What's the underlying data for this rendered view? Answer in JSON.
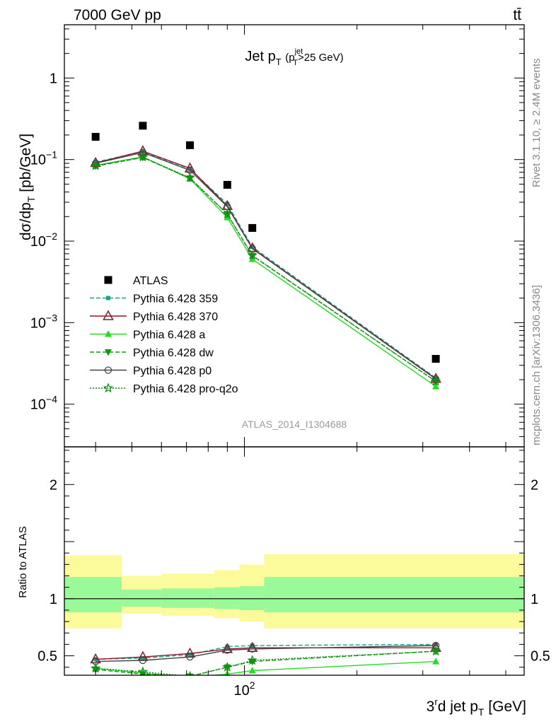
{
  "header": {
    "left_label": "7000 GeV pp",
    "right_label": "tt̄"
  },
  "side_labels": {
    "rivet": "Rivet 3.1.10, ≥ 2.4M events",
    "mcplots": "mcplots.cern.ch [arXiv:1306.3436]"
  },
  "watermark": "ATLAS_2014_I1304688",
  "chart_data": [
    {
      "type": "scatter",
      "panel": "main",
      "title": {
        "main": "Jet p",
        "sub": "T",
        "cond_open": "(p",
        "cond_sup": "jet",
        "cond_sub": "T",
        "cond_close": ">25 GeV)"
      },
      "ylabel": {
        "main": "dσ/dp",
        "sub": "T",
        "unit": " [pb/GeV]"
      },
      "yscale": "log",
      "xscale": "log",
      "xlim": [
        33,
        560
      ],
      "ylim": [
        3e-05,
        4.5
      ],
      "y_ticks": [
        {
          "value": 1,
          "label": "1"
        },
        {
          "value": 0.1,
          "label": "10",
          "exp": "−1"
        },
        {
          "value": 0.01,
          "label": "10",
          "exp": "−2"
        },
        {
          "value": 0.001,
          "label": "10",
          "exp": "−3"
        },
        {
          "value": 0.0001,
          "label": "10",
          "exp": "−4"
        }
      ],
      "legend_placement": "lower-left",
      "x": [
        40,
        53.5,
        71.5,
        90,
        105,
        325
      ],
      "data": {
        "name": "ATLAS",
        "color": "#000000",
        "values": [
          0.19,
          0.26,
          0.15,
          0.049,
          0.0145,
          0.00036
        ],
        "bins": [
          [
            33,
            47
          ],
          [
            47,
            60
          ],
          [
            60,
            83
          ],
          [
            83,
            97
          ],
          [
            97,
            113
          ],
          [
            113,
            560
          ]
        ]
      },
      "series": [
        {
          "name": "Pythia 6.428 359",
          "color": "#17a589",
          "dash": "6,3",
          "marker": "square-small",
          "values": [
            0.093,
            0.125,
            0.077,
            0.0285,
            0.0085,
            0.00021
          ]
        },
        {
          "name": "Pythia 6.428 370",
          "color": "#8b1a2b",
          "dash": "",
          "marker": "triangle-open",
          "values": [
            0.091,
            0.127,
            0.078,
            0.027,
            0.0082,
            0.000205
          ]
        },
        {
          "name": "Pythia 6.428 a",
          "color": "#22dd22",
          "dash": "",
          "marker": "triangle-filled",
          "values": [
            0.085,
            0.108,
            0.058,
            0.0195,
            0.006,
            0.000165
          ]
        },
        {
          "name": "Pythia 6.428 dw",
          "color": "#119911",
          "dash": "6,3",
          "marker": "triangle-down",
          "values": [
            0.083,
            0.106,
            0.059,
            0.0215,
            0.0066,
            0.00019
          ]
        },
        {
          "name": "Pythia 6.428 p0",
          "color": "#444444",
          "dash": "",
          "marker": "circle-open",
          "values": [
            0.09,
            0.122,
            0.074,
            0.0265,
            0.0081,
            0.000203
          ]
        },
        {
          "name": "Pythia 6.428 pro-q2o",
          "color": "#118811",
          "dash": "2,2",
          "marker": "star",
          "values": [
            0.084,
            0.107,
            0.06,
            0.0215,
            0.0067,
            0.00019
          ]
        }
      ]
    },
    {
      "type": "line",
      "panel": "ratio",
      "ylabel": "Ratio to ATLAS",
      "xlabel": {
        "pre": "3",
        "sup": "r",
        "post": "d jet p",
        "sub": "T",
        "unit": " [GeV]"
      },
      "xscale": "log",
      "xlim": [
        33,
        560
      ],
      "ylim": [
        0.33,
        2.33
      ],
      "x_ticks": [
        {
          "value": 100,
          "label": "10",
          "exp": "2"
        }
      ],
      "y_ticks": [
        {
          "value": 0.5,
          "label": "0.5"
        },
        {
          "value": 1,
          "label": "1"
        },
        {
          "value": 2,
          "label": "2"
        }
      ],
      "bands": {
        "bins": [
          [
            33,
            47
          ],
          [
            47,
            60
          ],
          [
            60,
            83
          ],
          [
            83,
            97
          ],
          [
            97,
            113
          ],
          [
            113,
            560
          ]
        ],
        "stat": [
          [
            0.88,
            1.19
          ],
          [
            0.93,
            1.08
          ],
          [
            0.92,
            1.09
          ],
          [
            0.91,
            1.1
          ],
          [
            0.9,
            1.11
          ],
          [
            0.88,
            1.19
          ]
        ],
        "total": [
          [
            0.74,
            1.38
          ],
          [
            0.87,
            1.2
          ],
          [
            0.85,
            1.22
          ],
          [
            0.83,
            1.25
          ],
          [
            0.8,
            1.3
          ],
          [
            0.74,
            1.39
          ]
        ],
        "stat_color": "#9afa9a",
        "total_color": "#fbfb9b"
      },
      "x": [
        40,
        53.5,
        71.5,
        90,
        105,
        325
      ],
      "series": [
        {
          "name": "Pythia 6.428 359",
          "values": [
            0.47,
            0.48,
            0.51,
            0.58,
            0.59,
            0.6
          ]
        },
        {
          "name": "Pythia 6.428 370",
          "values": [
            0.47,
            0.49,
            0.52,
            0.56,
            0.57,
            0.57
          ]
        },
        {
          "name": "Pythia 6.428 a",
          "values": [
            0.39,
            0.35,
            0.31,
            0.34,
            0.37,
            0.45
          ]
        },
        {
          "name": "Pythia 6.428 dw",
          "values": [
            0.38,
            0.34,
            0.32,
            0.4,
            0.45,
            0.54
          ]
        },
        {
          "name": "Pythia 6.428 p0",
          "values": [
            0.45,
            0.46,
            0.49,
            0.55,
            0.56,
            0.59
          ]
        },
        {
          "name": "Pythia 6.428 pro-q2o",
          "values": [
            0.39,
            0.36,
            0.32,
            0.4,
            0.46,
            0.54
          ]
        }
      ]
    }
  ]
}
